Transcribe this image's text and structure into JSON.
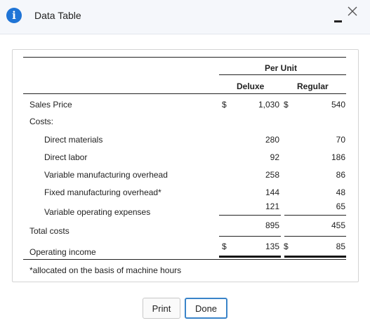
{
  "window": {
    "title": "Data Table"
  },
  "table": {
    "group_header": "Per Unit",
    "col_deluxe": "Deluxe",
    "col_regular": "Regular",
    "currency": "$",
    "rows": {
      "sales_price": {
        "label": "Sales Price",
        "deluxe": "1,030",
        "regular": "540"
      },
      "costs": {
        "label": "Costs:"
      },
      "direct_materials": {
        "label": "Direct materials",
        "deluxe": "280",
        "regular": "70"
      },
      "direct_labor": {
        "label": "Direct labor",
        "deluxe": "92",
        "regular": "186"
      },
      "var_mfg_overhead": {
        "label": "Variable manufacturing overhead",
        "deluxe": "258",
        "regular": "86"
      },
      "fixed_mfg_overhead": {
        "label": "Fixed manufacturing overhead*",
        "deluxe": "144",
        "regular": "48"
      },
      "var_op_expenses": {
        "label": "Variable operating expenses",
        "deluxe": "121",
        "regular": "65"
      },
      "total_costs": {
        "label": "Total costs",
        "deluxe": "895",
        "regular": "455"
      },
      "operating_income": {
        "label": "Operating income",
        "deluxe": "135",
        "regular": "85"
      }
    },
    "footnote": "*allocated on the basis of machine hours"
  },
  "buttons": {
    "print": "Print",
    "done": "Done"
  }
}
